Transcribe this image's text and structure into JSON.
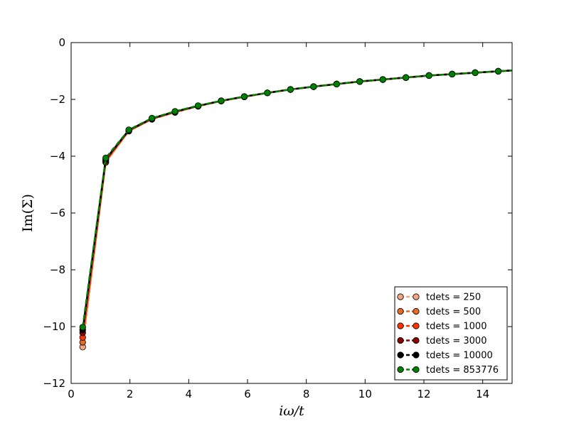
{
  "chart_data": {
    "type": "line",
    "xlabel": "iω/t",
    "ylabel": "Im(Σ)",
    "xlim": [
      0,
      15
    ],
    "ylim": [
      -12,
      0
    ],
    "xticks": [
      0,
      2,
      4,
      6,
      8,
      10,
      12,
      14
    ],
    "yticks": [
      0,
      -2,
      -4,
      -6,
      -8,
      -10,
      -12
    ],
    "xtick_labels": [
      "0",
      "2",
      "4",
      "6",
      "8",
      "10",
      "12",
      "14"
    ],
    "ytick_labels": [
      "0",
      "−2",
      "−4",
      "−6",
      "−8",
      "−10",
      "−12"
    ],
    "grid": false,
    "legend_position": "lower-right",
    "x": [
      0.393,
      1.178,
      1.963,
      2.749,
      3.534,
      4.32,
      5.105,
      5.89,
      6.676,
      7.461,
      8.247,
      9.032,
      9.817,
      10.603,
      11.388,
      12.174,
      12.959,
      13.744,
      14.53
    ],
    "series": [
      {
        "name": "tdets = 250",
        "color": "#f4a582",
        "line_style": "dashed",
        "values": [
          -10.72,
          -4.22,
          -3.12,
          -2.7,
          -2.46,
          -2.24,
          -2.06,
          -1.91,
          -1.77,
          -1.65,
          -1.55,
          -1.46,
          -1.37,
          -1.3,
          -1.23,
          -1.16,
          -1.11,
          -1.06,
          -1.01
        ]
      },
      {
        "name": "tdets = 500",
        "color": "#e66a1f",
        "line_style": "dashed",
        "values": [
          -10.55,
          -4.2,
          -3.11,
          -2.69,
          -2.45,
          -2.24,
          -2.06,
          -1.91,
          -1.77,
          -1.65,
          -1.55,
          -1.46,
          -1.37,
          -1.3,
          -1.23,
          -1.16,
          -1.11,
          -1.06,
          -1.01
        ]
      },
      {
        "name": "tdets = 1000",
        "color": "#ff3300",
        "line_style": "dashed",
        "values": [
          -10.38,
          -4.16,
          -3.1,
          -2.69,
          -2.44,
          -2.23,
          -2.05,
          -1.91,
          -1.77,
          -1.65,
          -1.55,
          -1.46,
          -1.37,
          -1.3,
          -1.23,
          -1.16,
          -1.11,
          -1.06,
          -1.01
        ]
      },
      {
        "name": "tdets = 3000",
        "color": "#8b0000",
        "line_style": "dashed",
        "values": [
          -10.22,
          -4.13,
          -3.09,
          -2.68,
          -2.44,
          -2.23,
          -2.05,
          -1.9,
          -1.77,
          -1.65,
          -1.55,
          -1.46,
          -1.37,
          -1.3,
          -1.23,
          -1.16,
          -1.11,
          -1.06,
          -1.01
        ]
      },
      {
        "name": "tdets = 10000",
        "color": "#000000",
        "line_style": "dashed",
        "values": [
          -10.12,
          -4.1,
          -3.08,
          -2.67,
          -2.43,
          -2.23,
          -2.05,
          -1.9,
          -1.77,
          -1.65,
          -1.55,
          -1.46,
          -1.37,
          -1.3,
          -1.23,
          -1.16,
          -1.11,
          -1.06,
          -1.01
        ]
      },
      {
        "name": "tdets = 853776",
        "color": "#008000",
        "line_style": "dashed",
        "values": [
          -10.02,
          -4.06,
          -3.07,
          -2.66,
          -2.42,
          -2.22,
          -2.05,
          -1.9,
          -1.77,
          -1.65,
          -1.55,
          -1.46,
          -1.37,
          -1.3,
          -1.23,
          -1.16,
          -1.11,
          -1.06,
          -1.01
        ]
      }
    ]
  }
}
